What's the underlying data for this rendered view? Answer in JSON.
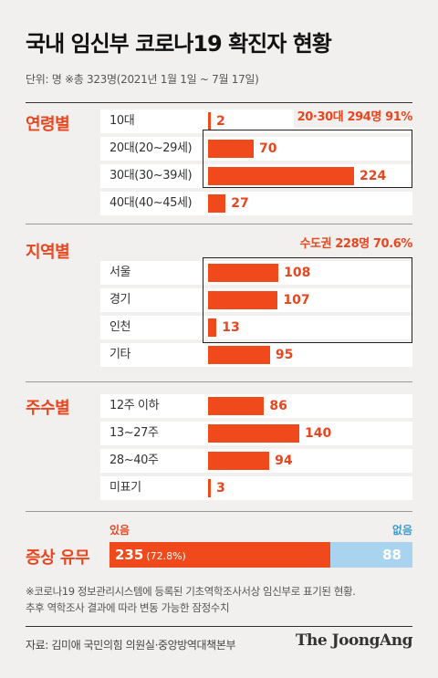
{
  "title": "국내 임신부 코로나19 확진자 현황",
  "subtitle": "단위: 명 ※총 323명(2021년 1월 1일 ~ 7월 17일)",
  "chart_data": [
    {
      "type": "bar",
      "title": "연령별",
      "categories": [
        "10대",
        "20대(20~29세)",
        "30대(30~39세)",
        "40대(40~45세)"
      ],
      "values": [
        2,
        70,
        224,
        27
      ],
      "annotation": "20·30대 294명 91%"
    },
    {
      "type": "bar",
      "title": "지역별",
      "categories": [
        "서울",
        "경기",
        "인천",
        "기타"
      ],
      "values": [
        108,
        107,
        13,
        95
      ],
      "annotation": "수도권 228명 70.6%"
    },
    {
      "type": "bar",
      "title": "주수별",
      "categories": [
        "12주 이하",
        "13~27주",
        "28~40주",
        "미표기"
      ],
      "values": [
        86,
        140,
        94,
        3
      ]
    },
    {
      "type": "bar",
      "title": "증상 유무",
      "categories": [
        "있음",
        "없음"
      ],
      "values": [
        235,
        88
      ],
      "value_labels": [
        "235",
        "88"
      ],
      "percent_label": "(72.8%)"
    }
  ],
  "notes": [
    "※코로나19 정보관리시스템에 등록된 기초역학조사서상 임신부로 표기된 현황.",
    "추후 역학조사 결과에 따라 변동 가능한 잠정수치"
  ],
  "source": "자료: 김미애 국민의힘 의원실·중앙방역대책본부",
  "brand": "The JoongAng",
  "colors": {
    "accent": "#f04a1c",
    "secondary": "#a9d4ef",
    "background": "#f2f0ef"
  }
}
